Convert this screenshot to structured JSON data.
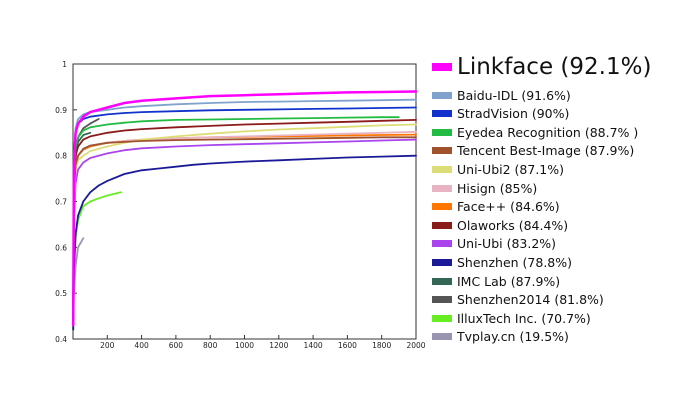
{
  "chart_data": {
    "type": "line",
    "title": "",
    "xlabel": "",
    "ylabel": "",
    "xlim": [
      0,
      2000
    ],
    "ylim": [
      0.4,
      1.0
    ],
    "x_ticks": [
      "200",
      "400",
      "600",
      "800",
      "1000",
      "1200",
      "1400",
      "1600",
      "1800",
      "2000"
    ],
    "y_ticks": [
      "0.4",
      "0.5",
      "0.6",
      "0.7",
      "0.8",
      "0.9",
      "1"
    ],
    "grid": false,
    "legend_position": "right",
    "series": [
      {
        "name": "Linkface (92.1%)",
        "color": "#ff00ff",
        "width": 2.5,
        "x": [
          1,
          5,
          15,
          30,
          60,
          100,
          150,
          200,
          300,
          400,
          600,
          800,
          1000,
          1200,
          1400,
          1600,
          1800,
          2000
        ],
        "y": [
          0.43,
          0.78,
          0.85,
          0.87,
          0.885,
          0.895,
          0.9,
          0.905,
          0.915,
          0.92,
          0.925,
          0.93,
          0.932,
          0.934,
          0.936,
          0.938,
          0.939,
          0.94
        ]
      },
      {
        "name": "Baidu-IDL (91.6%)",
        "color": "#7fa3cc",
        "width": 1.8,
        "x": [
          1,
          5,
          15,
          30,
          60,
          100,
          200,
          300,
          400,
          600,
          800,
          1000,
          1200,
          1400,
          1600,
          1800,
          2000
        ],
        "y": [
          0.45,
          0.8,
          0.86,
          0.88,
          0.89,
          0.895,
          0.9,
          0.905,
          0.908,
          0.912,
          0.915,
          0.917,
          0.918,
          0.919,
          0.92,
          0.921,
          0.922
        ]
      },
      {
        "name": "StradVision (90%)",
        "color": "#1133cc",
        "width": 1.8,
        "x": [
          1,
          5,
          15,
          30,
          60,
          100,
          200,
          300,
          400,
          600,
          800,
          1000,
          1200,
          1400,
          1600,
          1800,
          2000
        ],
        "y": [
          0.44,
          0.78,
          0.85,
          0.87,
          0.88,
          0.885,
          0.89,
          0.893,
          0.895,
          0.897,
          0.899,
          0.9,
          0.901,
          0.902,
          0.903,
          0.904,
          0.905
        ]
      },
      {
        "name": "Eyedea Recognition (88.7% )",
        "color": "#22bb44",
        "width": 1.8,
        "x": [
          1,
          5,
          15,
          30,
          60,
          100,
          200,
          300,
          400,
          600,
          800,
          1000,
          1200,
          1400,
          1600,
          1800,
          1900
        ],
        "y": [
          0.44,
          0.76,
          0.82,
          0.84,
          0.855,
          0.862,
          0.868,
          0.872,
          0.875,
          0.878,
          0.879,
          0.88,
          0.881,
          0.882,
          0.883,
          0.884,
          0.884
        ]
      },
      {
        "name": "Tencent Best-Image (87.9%)",
        "color": "#a0522d",
        "width": 1.8,
        "x": [
          1,
          5,
          15,
          30,
          60,
          100,
          200,
          300,
          400,
          600,
          800,
          1000,
          1200,
          1400,
          1600,
          1800,
          2000
        ],
        "y": [
          0.43,
          0.72,
          0.78,
          0.8,
          0.815,
          0.822,
          0.828,
          0.83,
          0.832,
          0.834,
          0.835,
          0.836,
          0.837,
          0.838,
          0.839,
          0.84,
          0.84
        ]
      },
      {
        "name": "Uni-Ubi2 (87.1%)",
        "color": "#dddd77",
        "width": 1.8,
        "x": [
          1,
          5,
          15,
          30,
          60,
          100,
          200,
          300,
          400,
          600,
          800,
          1000,
          1200,
          1400,
          1600,
          1800,
          2000
        ],
        "y": [
          0.43,
          0.7,
          0.77,
          0.79,
          0.8,
          0.81,
          0.82,
          0.828,
          0.835,
          0.842,
          0.848,
          0.853,
          0.857,
          0.86,
          0.863,
          0.866,
          0.868
        ]
      },
      {
        "name": "Hisign (85%)",
        "color": "#e8b4c4",
        "width": 1.8,
        "x": [
          1,
          5,
          15,
          30,
          60,
          100,
          200,
          300,
          400,
          600,
          800,
          1000,
          1200,
          1400,
          1600,
          1800,
          2000
        ],
        "y": [
          0.43,
          0.72,
          0.78,
          0.8,
          0.815,
          0.822,
          0.828,
          0.832,
          0.835,
          0.838,
          0.84,
          0.842,
          0.844,
          0.846,
          0.848,
          0.85,
          0.852
        ]
      },
      {
        "name": "Face++ (84.6%)",
        "color": "#ff7700",
        "width": 1.8,
        "x": [
          1,
          5,
          15,
          30,
          60,
          100,
          200,
          300,
          400,
          600,
          800,
          1000,
          1200,
          1400,
          1600,
          1800,
          2000
        ],
        "y": [
          0.43,
          0.71,
          0.77,
          0.8,
          0.813,
          0.82,
          0.828,
          0.832,
          0.835,
          0.838,
          0.84,
          0.841,
          0.842,
          0.843,
          0.844,
          0.845,
          0.846
        ]
      },
      {
        "name": "Olaworks (84.4%)",
        "color": "#8b1a1a",
        "width": 1.8,
        "x": [
          1,
          5,
          15,
          30,
          60,
          100,
          200,
          300,
          400,
          600,
          800,
          1000,
          1200,
          1400,
          1600,
          1800,
          2000
        ],
        "y": [
          0.43,
          0.74,
          0.8,
          0.82,
          0.835,
          0.842,
          0.85,
          0.855,
          0.858,
          0.862,
          0.865,
          0.868,
          0.87,
          0.872,
          0.874,
          0.876,
          0.878
        ]
      },
      {
        "name": "Uni-Ubi (83.2%)",
        "color": "#aa44ee",
        "width": 1.8,
        "x": [
          1,
          5,
          15,
          30,
          60,
          100,
          200,
          300,
          400,
          600,
          800,
          1000,
          1200,
          1400,
          1600,
          1800,
          2000
        ],
        "y": [
          0.43,
          0.66,
          0.74,
          0.77,
          0.785,
          0.795,
          0.805,
          0.812,
          0.816,
          0.82,
          0.823,
          0.825,
          0.827,
          0.829,
          0.831,
          0.833,
          0.835
        ]
      },
      {
        "name": "Shenzhen (78.8%)",
        "color": "#1a1a99",
        "width": 1.8,
        "x": [
          1,
          5,
          15,
          30,
          60,
          100,
          150,
          200,
          300,
          400,
          500,
          600,
          700,
          800,
          1000,
          1200,
          1400,
          1600,
          1800,
          2000
        ],
        "y": [
          0.42,
          0.55,
          0.63,
          0.67,
          0.7,
          0.72,
          0.735,
          0.745,
          0.76,
          0.768,
          0.772,
          0.776,
          0.78,
          0.783,
          0.787,
          0.79,
          0.793,
          0.796,
          0.798,
          0.8
        ]
      },
      {
        "name": "IMC Lab (87.9%)",
        "color": "#336655",
        "width": 1.8,
        "x": [
          1,
          5,
          15,
          30,
          60,
          100
        ],
        "y": [
          0.44,
          0.72,
          0.8,
          0.83,
          0.845,
          0.85
        ]
      },
      {
        "name": "Shenzhen2014 (81.8%)",
        "color": "#555555",
        "width": 1.8,
        "x": [
          1,
          5,
          15,
          30,
          60,
          100,
          150
        ],
        "y": [
          0.44,
          0.72,
          0.8,
          0.84,
          0.86,
          0.87,
          0.88
        ]
      },
      {
        "name": "IlluxTech Inc. (70.7%)",
        "color": "#66ee22",
        "width": 1.8,
        "x": [
          1,
          5,
          15,
          30,
          60,
          100,
          150,
          200,
          280
        ],
        "y": [
          0.42,
          0.55,
          0.62,
          0.66,
          0.69,
          0.7,
          0.707,
          0.713,
          0.72
        ]
      },
      {
        "name": "Tvplay.cn (19.5%)",
        "color": "#9a94b2",
        "width": 1.8,
        "x": [
          1,
          5,
          15,
          30,
          60
        ],
        "y": [
          0.42,
          0.5,
          0.56,
          0.6,
          0.62
        ]
      }
    ]
  }
}
